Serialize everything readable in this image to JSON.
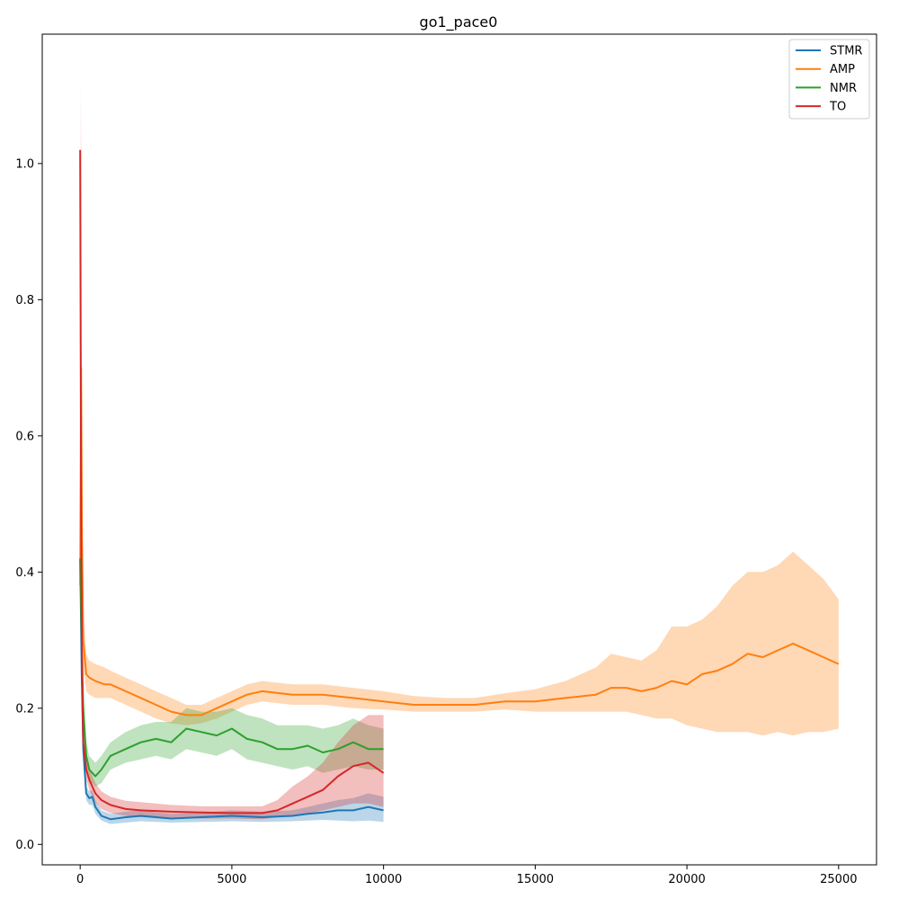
{
  "chart_data": {
    "type": "line",
    "title": "go1_pace0",
    "xlabel": "",
    "ylabel": "",
    "xlim": [
      -1250,
      26250
    ],
    "ylim": [
      -0.03,
      1.19
    ],
    "x_ticks": [
      0,
      5000,
      10000,
      15000,
      20000,
      25000
    ],
    "x_tick_labels": [
      "0",
      "5000",
      "10000",
      "15000",
      "20000",
      "25000"
    ],
    "y_ticks": [
      0.0,
      0.2,
      0.4,
      0.6,
      0.8,
      1.0
    ],
    "y_tick_labels": [
      "0.0",
      "0.2",
      "0.4",
      "0.6",
      "0.8",
      "1.0"
    ],
    "grid": false,
    "legend_position": "upper right",
    "shaded_band": "mean ± spread across runs",
    "series": [
      {
        "name": "STMR",
        "color": "#1f77b4",
        "x": [
          0,
          50,
          100,
          200,
          300,
          400,
          500,
          700,
          1000,
          1500,
          2000,
          2500,
          3000,
          4000,
          5000,
          6000,
          7000,
          7500,
          8000,
          8500,
          9000,
          9500,
          10000
        ],
        "y": [
          0.42,
          0.25,
          0.14,
          0.075,
          0.068,
          0.07,
          0.055,
          0.042,
          0.037,
          0.04,
          0.042,
          0.04,
          0.038,
          0.04,
          0.042,
          0.04,
          0.042,
          0.045,
          0.047,
          0.05,
          0.05,
          0.055,
          0.05
        ],
        "lower": [
          0.4,
          0.22,
          0.12,
          0.065,
          0.058,
          0.058,
          0.045,
          0.035,
          0.03,
          0.032,
          0.034,
          0.033,
          0.032,
          0.033,
          0.034,
          0.033,
          0.034,
          0.035,
          0.036,
          0.035,
          0.034,
          0.035,
          0.033
        ],
        "upper": [
          0.44,
          0.28,
          0.16,
          0.085,
          0.078,
          0.08,
          0.065,
          0.05,
          0.045,
          0.048,
          0.05,
          0.047,
          0.045,
          0.047,
          0.05,
          0.048,
          0.05,
          0.055,
          0.06,
          0.065,
          0.068,
          0.075,
          0.07
        ]
      },
      {
        "name": "AMP",
        "color": "#ff7f0e",
        "x": [
          0,
          30,
          60,
          100,
          200,
          300,
          500,
          800,
          1000,
          1500,
          2000,
          2500,
          3000,
          3500,
          4000,
          4500,
          5000,
          5500,
          6000,
          7000,
          8000,
          9000,
          10000,
          11000,
          12000,
          13000,
          14000,
          15000,
          16000,
          17000,
          17500,
          18000,
          18500,
          19000,
          19500,
          20000,
          20500,
          21000,
          21500,
          22000,
          22500,
          23000,
          23500,
          24000,
          24500,
          25000
        ],
        "y": [
          0.38,
          0.7,
          0.45,
          0.3,
          0.25,
          0.245,
          0.24,
          0.235,
          0.235,
          0.225,
          0.215,
          0.205,
          0.195,
          0.19,
          0.19,
          0.2,
          0.21,
          0.22,
          0.225,
          0.22,
          0.22,
          0.215,
          0.21,
          0.205,
          0.205,
          0.205,
          0.21,
          0.21,
          0.215,
          0.22,
          0.23,
          0.23,
          0.225,
          0.23,
          0.24,
          0.235,
          0.25,
          0.255,
          0.265,
          0.28,
          0.275,
          0.285,
          0.295,
          0.285,
          0.275,
          0.265
        ],
        "lower": [
          0.3,
          0.45,
          0.35,
          0.26,
          0.225,
          0.22,
          0.215,
          0.215,
          0.215,
          0.205,
          0.195,
          0.185,
          0.178,
          0.175,
          0.178,
          0.185,
          0.195,
          0.205,
          0.21,
          0.205,
          0.205,
          0.2,
          0.198,
          0.195,
          0.195,
          0.195,
          0.198,
          0.195,
          0.195,
          0.195,
          0.195,
          0.195,
          0.19,
          0.185,
          0.185,
          0.175,
          0.17,
          0.165,
          0.165,
          0.165,
          0.16,
          0.165,
          0.16,
          0.165,
          0.165,
          0.17
        ],
        "upper": [
          0.46,
          1.12,
          0.55,
          0.34,
          0.28,
          0.27,
          0.265,
          0.26,
          0.255,
          0.245,
          0.235,
          0.225,
          0.215,
          0.205,
          0.205,
          0.215,
          0.225,
          0.235,
          0.24,
          0.235,
          0.235,
          0.23,
          0.225,
          0.218,
          0.215,
          0.215,
          0.222,
          0.228,
          0.24,
          0.26,
          0.28,
          0.275,
          0.27,
          0.285,
          0.32,
          0.32,
          0.33,
          0.35,
          0.38,
          0.4,
          0.4,
          0.41,
          0.43,
          0.41,
          0.39,
          0.36
        ]
      },
      {
        "name": "NMR",
        "color": "#2ca02c",
        "x": [
          0,
          50,
          100,
          200,
          300,
          400,
          500,
          700,
          1000,
          1500,
          2000,
          2500,
          3000,
          3500,
          4000,
          4500,
          5000,
          5500,
          6000,
          6500,
          7000,
          7500,
          8000,
          8500,
          9000,
          9500,
          10000
        ],
        "y": [
          0.42,
          0.3,
          0.2,
          0.13,
          0.11,
          0.105,
          0.1,
          0.11,
          0.13,
          0.14,
          0.15,
          0.155,
          0.15,
          0.17,
          0.165,
          0.16,
          0.17,
          0.155,
          0.15,
          0.14,
          0.14,
          0.145,
          0.135,
          0.14,
          0.15,
          0.14,
          0.14
        ],
        "lower": [
          0.4,
          0.27,
          0.17,
          0.11,
          0.09,
          0.09,
          0.085,
          0.09,
          0.11,
          0.12,
          0.125,
          0.13,
          0.125,
          0.14,
          0.135,
          0.13,
          0.14,
          0.125,
          0.12,
          0.115,
          0.11,
          0.115,
          0.105,
          0.11,
          0.115,
          0.11,
          0.11
        ],
        "upper": [
          0.44,
          0.33,
          0.23,
          0.15,
          0.13,
          0.125,
          0.12,
          0.13,
          0.15,
          0.165,
          0.175,
          0.18,
          0.18,
          0.2,
          0.195,
          0.195,
          0.2,
          0.19,
          0.185,
          0.175,
          0.175,
          0.175,
          0.17,
          0.175,
          0.185,
          0.175,
          0.17
        ]
      },
      {
        "name": "TO",
        "color": "#d62728",
        "x": [
          0,
          30,
          60,
          100,
          200,
          300,
          400,
          500,
          700,
          1000,
          1500,
          2000,
          3000,
          4000,
          5000,
          6000,
          6500,
          7000,
          7500,
          8000,
          8500,
          9000,
          9500,
          10000
        ],
        "y": [
          1.02,
          0.5,
          0.25,
          0.15,
          0.11,
          0.095,
          0.085,
          0.075,
          0.065,
          0.058,
          0.052,
          0.05,
          0.048,
          0.047,
          0.046,
          0.046,
          0.05,
          0.06,
          0.07,
          0.08,
          0.1,
          0.115,
          0.12,
          0.105
        ],
        "lower": [
          0.9,
          0.42,
          0.21,
          0.13,
          0.095,
          0.08,
          0.07,
          0.062,
          0.052,
          0.046,
          0.042,
          0.04,
          0.038,
          0.038,
          0.038,
          0.037,
          0.04,
          0.042,
          0.045,
          0.05,
          0.055,
          0.06,
          0.06,
          0.055
        ],
        "upper": [
          1.12,
          0.58,
          0.29,
          0.17,
          0.125,
          0.11,
          0.1,
          0.09,
          0.078,
          0.07,
          0.064,
          0.062,
          0.058,
          0.056,
          0.056,
          0.056,
          0.065,
          0.085,
          0.1,
          0.12,
          0.15,
          0.175,
          0.19,
          0.19
        ]
      }
    ]
  }
}
